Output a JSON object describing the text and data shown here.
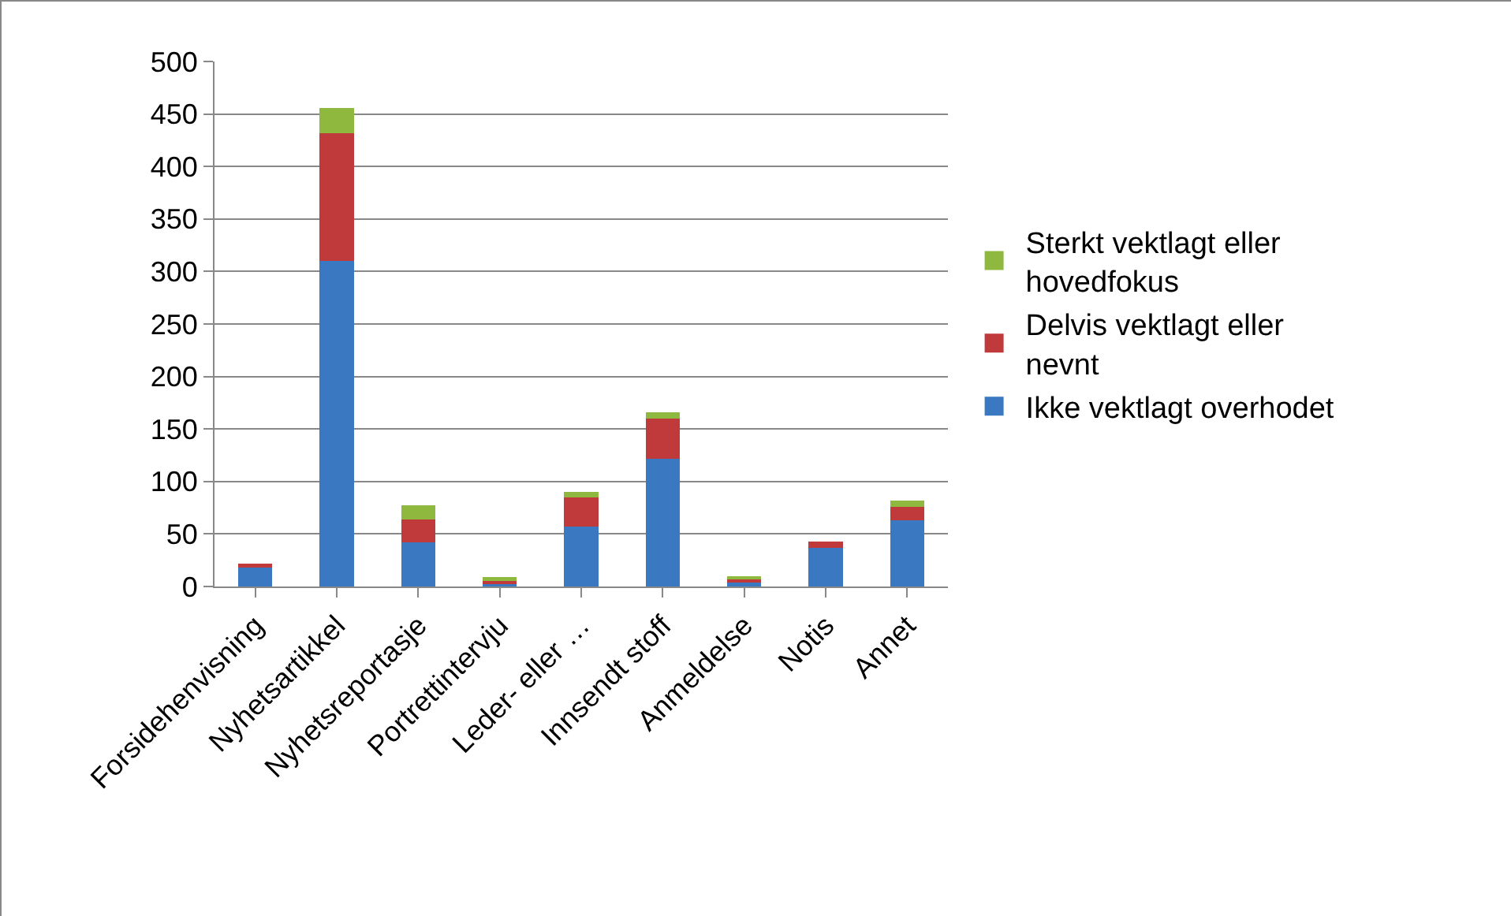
{
  "chart_data": {
    "type": "bar",
    "stacked": true,
    "categories": [
      "Forsidehenvisning",
      "Nyhetsartikkel",
      "Nyhetsreportasje",
      "Portrettintervju",
      "Leder- eller …",
      "Innsendt stoff",
      "Anmeldelse",
      "Notis",
      "Annet"
    ],
    "series": [
      {
        "name": "Ikke vektlagt overhodet",
        "color": "#3a78c2",
        "values": [
          18,
          310,
          42,
          2,
          57,
          122,
          4,
          37,
          63
        ]
      },
      {
        "name": "Delvis vektlagt eller nevnt",
        "color": "#c0393b",
        "values": [
          4,
          122,
          22,
          3,
          28,
          38,
          3,
          6,
          13
        ]
      },
      {
        "name": "Sterkt vektlagt eller hovedfokus",
        "color": "#8fb83e",
        "values": [
          0,
          24,
          13,
          4,
          5,
          6,
          3,
          0,
          6
        ]
      }
    ],
    "ylim": [
      0,
      500
    ],
    "yticks": [
      0,
      50,
      100,
      150,
      200,
      250,
      300,
      350,
      400,
      450,
      500
    ],
    "grid": "y",
    "legend": "right"
  }
}
